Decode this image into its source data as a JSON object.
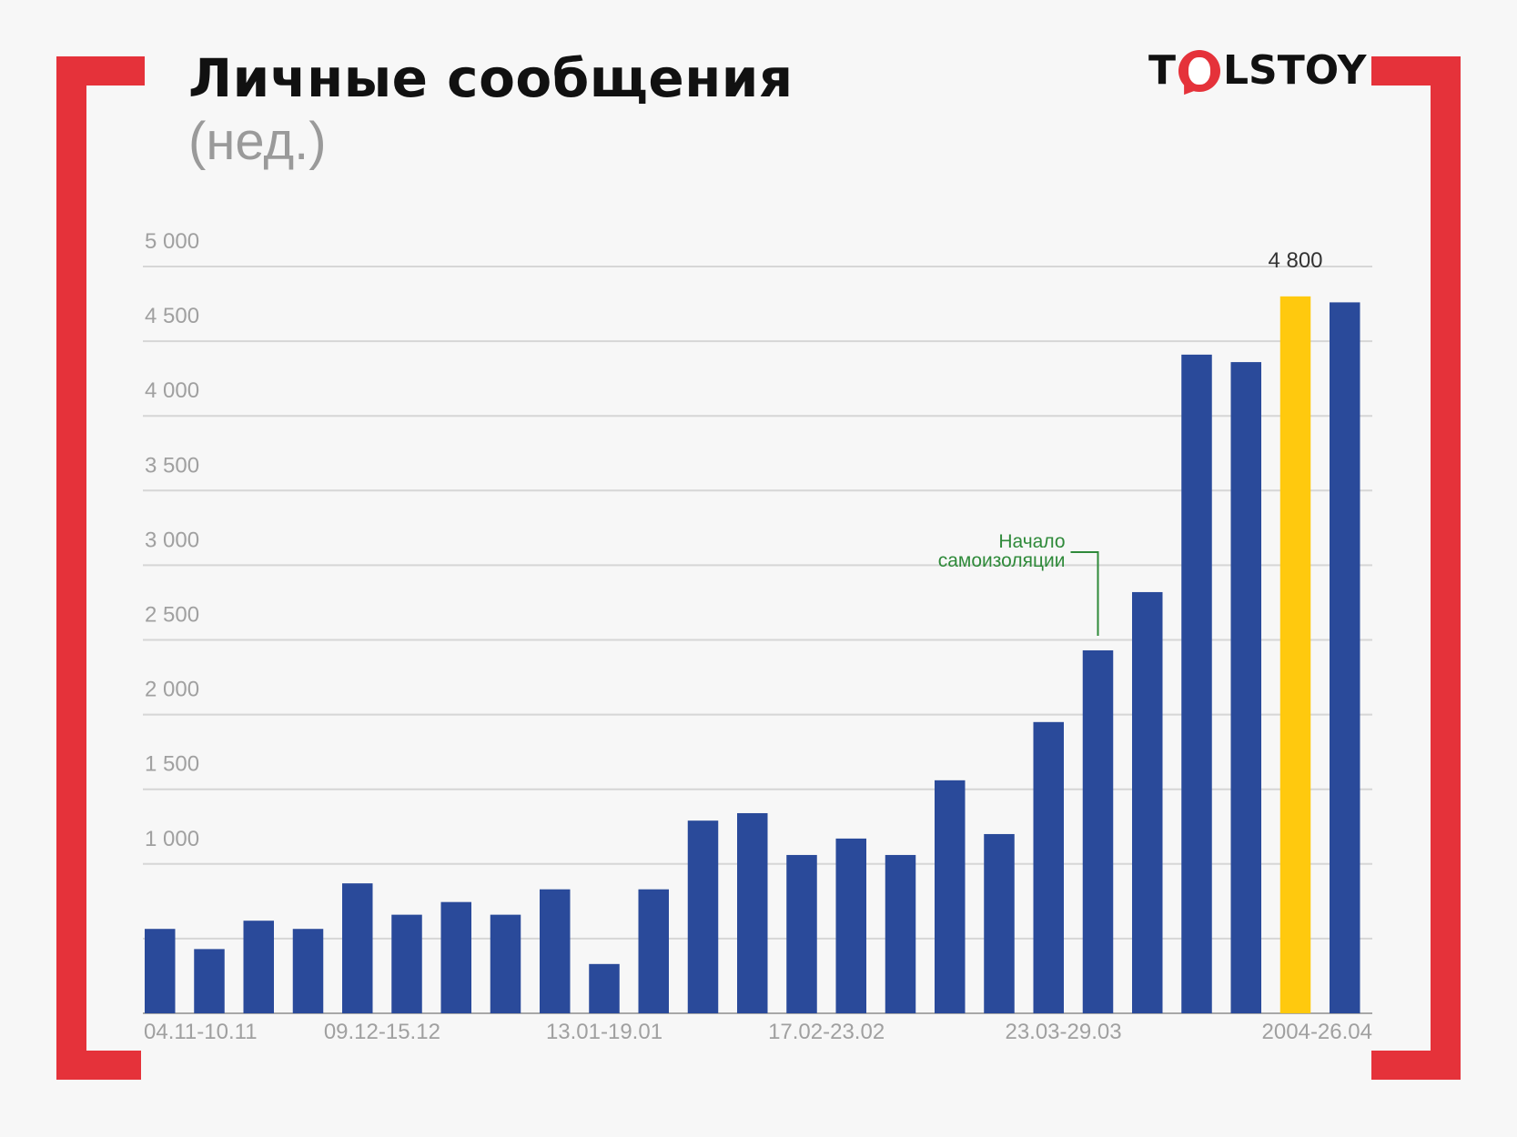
{
  "title": "Личные сообщения",
  "subtitle": "(нед.)",
  "logo": {
    "left": "T",
    "right": "LSTOY"
  },
  "colors": {
    "bar": "#2a4a9a",
    "highlight": "#ffc90e",
    "bracket": "#e5323a",
    "grid": "#d6d6d6",
    "annotation": "#2f8a3a",
    "background": "#f7f7f7"
  },
  "chart_data": {
    "type": "bar",
    "title": "Личные сообщения",
    "subtitle": "(нед.)",
    "xlabel": "",
    "ylabel": "",
    "ylim": [
      0,
      5000
    ],
    "yticks": [
      1000,
      1500,
      2000,
      2500,
      3000,
      3500,
      4000,
      4500,
      5000
    ],
    "ytick_labels": [
      "1 000",
      "1 500",
      "2 000",
      "2 500",
      "3 000",
      "3 500",
      "4 000",
      "4 500",
      "5 000"
    ],
    "grid": true,
    "categories": [
      "04.11-10.11",
      "",
      "",
      "",
      "09.12-15.12",
      "",
      "",
      "",
      "",
      "13.01-19.01",
      "",
      "",
      "",
      "",
      "17.02-23.02",
      "",
      "",
      "",
      "",
      "23.03-29.03",
      "",
      "",
      "",
      "2004-26.04",
      ""
    ],
    "xtick_labels": [
      {
        "index": 0,
        "text": "04.11-10.11"
      },
      {
        "index": 4.5,
        "text": "09.12-15.12"
      },
      {
        "index": 9,
        "text": "13.01-19.01"
      },
      {
        "index": 13.5,
        "text": "17.02-23.02"
      },
      {
        "index": 18.3,
        "text": "23.03-29.03"
      },
      {
        "index": 23,
        "text": "2004-26.04"
      }
    ],
    "values": [
      565,
      430,
      620,
      565,
      870,
      660,
      745,
      660,
      830,
      330,
      830,
      1290,
      1340,
      1060,
      1170,
      1060,
      1560,
      1200,
      1950,
      2430,
      2820,
      4410,
      4360,
      4800,
      4760
    ],
    "highlight_index": 23,
    "data_labels": [
      {
        "index": 23,
        "text": "4 800"
      }
    ],
    "annotations": [
      {
        "index": 19,
        "lines": [
          "Начало",
          "самоизоляции"
        ]
      }
    ]
  }
}
